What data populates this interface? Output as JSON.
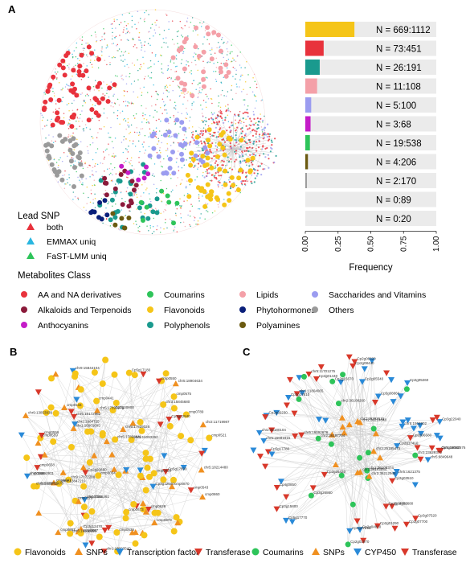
{
  "panels": {
    "a": "A",
    "b": "B",
    "c": "C"
  },
  "colors": {
    "aa_na": "#e8323c",
    "alkaloids": "#8b1a3a",
    "anthocyanins": "#c41cc8",
    "coumarins": "#2ec45a",
    "flavonoids": "#f5c518",
    "polyphenols": "#1a9a8e",
    "lipids": "#f4a0a8",
    "phytohormones": "#0a1f7a",
    "polyamines": "#6b5a10",
    "saccharides": "#9b9cf0",
    "others": "#9a9a9a",
    "snp": "#f09020",
    "tf": "#2a8ad8",
    "transferase": "#d8382a",
    "cyp450": "#2a8ad8"
  },
  "chart_data": {
    "type": "bar",
    "orientation": "horizontal",
    "categories": [
      "N = 669:1112",
      "N = 73:451",
      "N = 26:191",
      "N = 11:108",
      "N = 5:100",
      "N = 3:68",
      "N = 19:538",
      "N = 4:206",
      "N = 2:170",
      "N = 0:89",
      "N = 0:20"
    ],
    "values": [
      0.375,
      0.14,
      0.11,
      0.09,
      0.045,
      0.04,
      0.035,
      0.02,
      0.012,
      0.0,
      0.0
    ],
    "bar_colors": [
      "#f5c518",
      "#e8323c",
      "#1a9a8e",
      "#f4a0a8",
      "#9b9cf0",
      "#c41cc8",
      "#2ec45a",
      "#6b5a10",
      "#9a9a9a",
      "#0a1f7a",
      "#8b1a3a"
    ],
    "xlabel": "Frequency",
    "xlim": [
      0,
      1
    ],
    "xticks": [
      "0.00",
      "0.25",
      "0.50",
      "0.75",
      "1.00"
    ]
  },
  "legend": {
    "lead_snp_title": "Lead SNP",
    "lead_snp": [
      {
        "label": "both",
        "color": "#e8323c"
      },
      {
        "label": "EMMAX uniq",
        "color": "#29b6e0"
      },
      {
        "label": "FaST-LMM uniq",
        "color": "#2ec45a"
      }
    ],
    "metabolites_title": "Metabolites Class",
    "classes": [
      {
        "label": "AA and NA derivatives",
        "color": "#e8323c"
      },
      {
        "label": "Coumarins",
        "color": "#2ec45a"
      },
      {
        "label": "Lipids",
        "color": "#f4a0a8"
      },
      {
        "label": "Saccharides and Vitamins",
        "color": "#9b9cf0"
      },
      {
        "label": "Alkaloids and Terpenoids",
        "color": "#8b1a3a"
      },
      {
        "label": "Flavonoids",
        "color": "#f5c518"
      },
      {
        "label": "Phytohormones",
        "color": "#0a1f7a"
      },
      {
        "label": "Others",
        "color": "#9a9a9a"
      },
      {
        "label": "Anthocyanins",
        "color": "#c41cc8"
      },
      {
        "label": "Polyphenols",
        "color": "#1a9a8e"
      },
      {
        "label": "Polyamines",
        "color": "#6b5a10"
      }
    ]
  },
  "panel_b_legend": [
    "Flavonoids",
    "SNPs",
    "Transcription factor",
    "Transferase"
  ],
  "panel_c_legend": [
    "Coumarins",
    "SNPs",
    "CYP450",
    "Transferase"
  ],
  "panel_b_labels": [
    "cmp0065",
    "cmp0668",
    "cmp0134",
    "cmp0575",
    "cmp0673",
    "cmp0789",
    "cmp0559",
    "chr5:18904634",
    "chr5:18972478",
    "chr5:16093262",
    "chr5:18214480",
    "chr2:11719987",
    "chr5:16172962",
    "chr2:2931712",
    "chr9:13847219",
    "chr2:2964725",
    "Cp3g12600",
    "Cp3g12470",
    "Cp3g12540",
    "Cp5g17890",
    "Cp5g17180",
    "Cp2g20860",
    "Cp2g20800",
    "chr5:17825026",
    "chr5:17890075",
    "chr5:16558996",
    "chr5:17898441",
    "chr1:16001095",
    "cmp0867",
    "cmp0658",
    "cmp0870",
    "cmp0641",
    "cmp0628",
    "cmp0441",
    "cmp0054",
    "cmp0121",
    "cmp0557",
    "cmp0929",
    "cmp0539",
    "cmp0860",
    "cmp0550",
    "cmp0556",
    "cmp0973",
    "cmp0543",
    "cmp0521",
    "chr9:13853939",
    "chr9:15844104",
    "chr1:16003540",
    "chr9:17172288",
    "chr3:15845680",
    "chr1:7166261",
    "chr5:16892911"
  ],
  "panel_c_labels": [
    "Cp5g18540",
    "Cp4g0850",
    "Cp5g17780",
    "Cp2g04780",
    "Cp3g17810",
    "Cp5g17770",
    "chr5:9849648",
    "chr5:11701275",
    "chr5:1621375",
    "chr5:1504902",
    "chr5:16092676",
    "chr5:15681915",
    "Cp2g15670",
    "Cp2g27290",
    "Cp2g02230",
    "Cp3g15800",
    "Cp3g22040",
    "chr3:23629370",
    "chr2:36180104",
    "chr2:36108260",
    "chr2:25165475",
    "chr2:36283615",
    "chr2:36108374",
    "chr2:36182554",
    "chr2:36197704",
    "chr2:36212948",
    "chr2:36214048",
    "Cp2g05260",
    "Cp3g26860",
    "Cp2g01290",
    "Cp2g03510",
    "Cp2g07700",
    "Cp2g06580",
    "Cp2g01440",
    "Cp2g17410",
    "Cp5g08860",
    "Cp2g26420",
    "Cp2g06820",
    "Cp3g07520",
    "Cp2g05540",
    "Cp2g02680",
    "Cp2g01970",
    "Cp2g04810",
    "Cp2g08440",
    "chr1:11804065",
    "chr5:16092676"
  ]
}
